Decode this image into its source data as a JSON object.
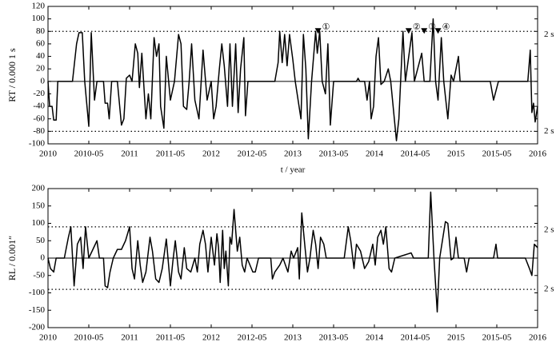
{
  "chart_data": [
    {
      "type": "line",
      "ylabel": "RT / 0.000 1 s",
      "xlabel": "t / year",
      "color": "#000000",
      "xlim": [
        2010,
        2016
      ],
      "ylim": [
        -100,
        120
      ],
      "xticks": [
        2010,
        {
          "value": 2010.5,
          "label": "2010-05"
        },
        2011,
        {
          "value": 2011.5,
          "label": "2011-05"
        },
        2012,
        {
          "value": 2012.5,
          "label": "2012-05"
        },
        2013,
        {
          "value": 2013.5,
          "label": "2013-05"
        },
        2014,
        {
          "value": 2014.5,
          "label": "2014-05"
        },
        2015,
        {
          "value": 2015.5,
          "label": "2015-05"
        },
        2016
      ],
      "yticks": [
        -100,
        -80,
        -60,
        -40,
        -20,
        0,
        20,
        40,
        60,
        80,
        100,
        120
      ],
      "reference_lines": [
        {
          "value": 80,
          "label": "2 s"
        },
        {
          "value": -80,
          "label": "2 s"
        }
      ],
      "annotations": [
        {
          "text": "①",
          "x": 2013.31,
          "y": 80
        },
        {
          "text": "②",
          "x": 2014.42,
          "y": 80
        },
        {
          "text": "③",
          "x": 2014.61,
          "y": 80
        },
        {
          "text": "④",
          "x": 2014.78,
          "y": 80
        }
      ],
      "x": [
        2010.0,
        2010.02,
        2010.05,
        2010.07,
        2010.1,
        2010.12,
        2010.3,
        2010.35,
        2010.38,
        2010.42,
        2010.45,
        2010.5,
        2010.53,
        2010.57,
        2010.6,
        2010.68,
        2010.7,
        2010.73,
        2010.75,
        2010.78,
        2010.85,
        2010.9,
        2010.93,
        2010.96,
        2011.0,
        2011.03,
        2011.07,
        2011.1,
        2011.12,
        2011.15,
        2011.2,
        2011.23,
        2011.26,
        2011.3,
        2011.33,
        2011.36,
        2011.38,
        2011.42,
        2011.45,
        2011.5,
        2011.55,
        2011.6,
        2011.63,
        2011.66,
        2011.7,
        2011.73,
        2011.76,
        2011.8,
        2011.85,
        2011.9,
        2011.95,
        2012.0,
        2012.03,
        2012.06,
        2012.1,
        2012.13,
        2012.16,
        2012.2,
        2012.23,
        2012.26,
        2012.3,
        2012.33,
        2012.36,
        2012.4,
        2012.42,
        2012.45,
        2012.78,
        2012.82,
        2012.84,
        2012.87,
        2012.9,
        2012.93,
        2012.96,
        2013.0,
        2013.03,
        2013.1,
        2013.13,
        2013.16,
        2013.19,
        2013.23,
        2013.28,
        2013.3,
        2013.33,
        2013.36,
        2013.4,
        2013.43,
        2013.46,
        2013.5,
        2013.78,
        2013.8,
        2013.82,
        2013.88,
        2013.91,
        2013.94,
        2013.96,
        2013.99,
        2014.02,
        2014.05,
        2014.08,
        2014.12,
        2014.17,
        2014.2,
        2014.27,
        2014.3,
        2014.35,
        2014.38,
        2014.46,
        2014.49,
        2014.58,
        2014.61,
        2014.68,
        2014.72,
        2014.75,
        2014.78,
        2014.82,
        2014.85,
        2014.9,
        2014.94,
        2014.97,
        2015.03,
        2015.05,
        2015.42,
        2015.46,
        2015.49,
        2015.52,
        2015.88,
        2015.91,
        2015.93,
        2015.95,
        2015.97,
        2016.0
      ],
      "values": [
        0,
        -40,
        -40,
        -62,
        -62,
        0,
        0,
        60,
        78,
        78,
        0,
        -72,
        78,
        -30,
        0,
        0,
        -35,
        -35,
        -60,
        0,
        0,
        -70,
        -60,
        5,
        10,
        0,
        60,
        45,
        -10,
        45,
        -60,
        -20,
        -60,
        70,
        40,
        60,
        -40,
        -75,
        40,
        -30,
        0,
        75,
        60,
        -40,
        -45,
        0,
        60,
        -30,
        -60,
        50,
        -30,
        0,
        -60,
        -40,
        20,
        60,
        25,
        -40,
        60,
        -40,
        60,
        -50,
        20,
        70,
        -55,
        0,
        0,
        30,
        80,
        30,
        75,
        25,
        75,
        35,
        0,
        -60,
        75,
        20,
        -92,
        0,
        80,
        45,
        80,
        0,
        -20,
        60,
        -70,
        0,
        0,
        5,
        0,
        0,
        -30,
        0,
        -60,
        -40,
        40,
        70,
        -5,
        0,
        20,
        0,
        -95,
        -60,
        80,
        0,
        78,
        0,
        45,
        0,
        0,
        100,
        0,
        -30,
        70,
        0,
        -60,
        10,
        0,
        40,
        0,
        0,
        -30,
        -15,
        0,
        0,
        50,
        -50,
        -35,
        -65,
        -40
      ]
    },
    {
      "type": "line",
      "ylabel": "RL / 0.001″",
      "xlabel": "t / year",
      "color": "#000000",
      "xlim": [
        2010,
        2016
      ],
      "ylim": [
        -200,
        200
      ],
      "xticks": [
        2010,
        {
          "value": 2010.5,
          "label": "2010-05"
        },
        2011,
        {
          "value": 2011.5,
          "label": "2011-05"
        },
        2012,
        {
          "value": 2012.5,
          "label": "2012-05"
        },
        2013,
        {
          "value": 2013.5,
          "label": "2013-05"
        },
        2014,
        {
          "value": 2014.5,
          "label": "2014-05"
        },
        2015,
        {
          "value": 2015.5,
          "label": "2015-05"
        },
        2016
      ],
      "yticks": [
        -200,
        -150,
        -100,
        -50,
        0,
        50,
        100,
        150,
        200
      ],
      "reference_lines": [
        {
          "value": 90,
          "label": "2 s"
        },
        {
          "value": -90,
          "label": "2 s"
        }
      ],
      "x": [
        2010.0,
        2010.03,
        2010.07,
        2010.1,
        2010.2,
        2010.25,
        2010.28,
        2010.32,
        2010.36,
        2010.4,
        2010.43,
        2010.46,
        2010.5,
        2010.6,
        2010.63,
        2010.68,
        2010.7,
        2010.73,
        2010.76,
        2010.8,
        2010.85,
        2010.9,
        2010.95,
        2011.0,
        2011.03,
        2011.06,
        2011.1,
        2011.13,
        2011.16,
        2011.2,
        2011.25,
        2011.28,
        2011.32,
        2011.36,
        2011.4,
        2011.45,
        2011.5,
        2011.53,
        2011.56,
        2011.6,
        2011.63,
        2011.67,
        2011.7,
        2011.75,
        2011.8,
        2011.83,
        2011.86,
        2011.9,
        2011.93,
        2011.96,
        2012.0,
        2012.02,
        2012.04,
        2012.07,
        2012.09,
        2012.11,
        2012.14,
        2012.16,
        2012.18,
        2012.21,
        2012.23,
        2012.25,
        2012.28,
        2012.32,
        2012.35,
        2012.38,
        2012.41,
        2012.44,
        2012.51,
        2012.54,
        2012.58,
        2012.73,
        2012.75,
        2012.78,
        2012.81,
        2012.84,
        2012.88,
        2012.91,
        2012.94,
        2012.98,
        2013.01,
        2013.06,
        2013.08,
        2013.11,
        2013.15,
        2013.18,
        2013.21,
        2013.25,
        2013.28,
        2013.31,
        2013.34,
        2013.38,
        2013.41,
        2013.63,
        2013.68,
        2013.71,
        2013.75,
        2013.78,
        2013.83,
        2013.88,
        2013.93,
        2013.98,
        2014.01,
        2014.04,
        2014.08,
        2014.11,
        2014.14,
        2014.18,
        2014.21,
        2014.25,
        2014.45,
        2014.48,
        2014.66,
        2014.69,
        2014.73,
        2014.77,
        2014.8,
        2014.84,
        2014.87,
        2014.9,
        2014.94,
        2014.97,
        2015.0,
        2015.03,
        2015.1,
        2015.13,
        2015.16,
        2015.46,
        2015.49,
        2015.51,
        2015.85,
        2015.9,
        2015.93,
        2015.96,
        2016.0
      ],
      "values": [
        0,
        -30,
        -40,
        0,
        0,
        60,
        90,
        -80,
        40,
        60,
        -30,
        90,
        0,
        50,
        0,
        0,
        -80,
        -85,
        -40,
        0,
        25,
        25,
        50,
        90,
        -30,
        -60,
        50,
        -20,
        -70,
        -40,
        60,
        20,
        -60,
        -70,
        -30,
        55,
        -80,
        -10,
        50,
        -40,
        -60,
        30,
        -30,
        -40,
        0,
        -40,
        40,
        80,
        40,
        -40,
        60,
        20,
        -20,
        70,
        30,
        -70,
        80,
        -30,
        20,
        -80,
        60,
        40,
        140,
        20,
        60,
        -20,
        -40,
        0,
        -40,
        -40,
        0,
        0,
        -60,
        -40,
        -30,
        -20,
        0,
        -20,
        -40,
        20,
        0,
        30,
        -60,
        130,
        30,
        -40,
        0,
        80,
        40,
        -30,
        60,
        40,
        0,
        0,
        90,
        50,
        -30,
        40,
        20,
        -30,
        -10,
        40,
        -20,
        60,
        80,
        40,
        90,
        -30,
        -40,
        0,
        15,
        0,
        0,
        190,
        0,
        -155,
        0,
        60,
        105,
        100,
        -5,
        0,
        60,
        0,
        0,
        -40,
        0,
        0,
        40,
        0,
        0,
        -30,
        -50,
        40,
        30
      ]
    }
  ]
}
